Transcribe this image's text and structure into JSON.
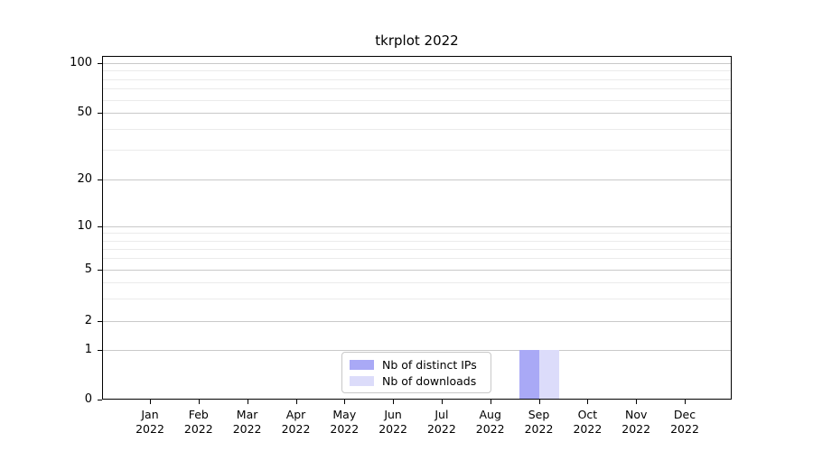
{
  "chart_data": {
    "type": "bar",
    "title": "tkrplot 2022",
    "categories": [
      "Jan 2022",
      "Feb 2022",
      "Mar 2022",
      "Apr 2022",
      "May 2022",
      "Jun 2022",
      "Jul 2022",
      "Aug 2022",
      "Sep 2022",
      "Oct 2022",
      "Nov 2022",
      "Dec 2022"
    ],
    "series": [
      {
        "name": "Nb of distinct IPs",
        "color": "#a9a9f6",
        "values": [
          0,
          0,
          0,
          0,
          0,
          0,
          0,
          0,
          1,
          0,
          0,
          0
        ]
      },
      {
        "name": "Nb of downloads",
        "color": "#dcdcfa",
        "values": [
          0,
          0,
          0,
          0,
          0,
          0,
          0,
          0,
          1,
          0,
          0,
          0
        ]
      }
    ],
    "y_axis": {
      "ticks": [
        0,
        1,
        2,
        5,
        10,
        20,
        50,
        100
      ],
      "minor_ticks": [
        3,
        4,
        6,
        7,
        8,
        9,
        30,
        40,
        60,
        70,
        80,
        90
      ],
      "scale": "zero-baseline log",
      "range": [
        0,
        110
      ]
    },
    "x_axis": {
      "label_year_on_second_line": true
    },
    "legend": {
      "position": "bottom-center"
    },
    "grid": true
  }
}
